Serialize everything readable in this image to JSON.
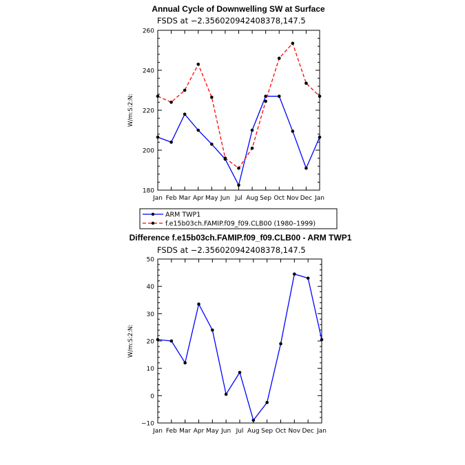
{
  "chart_data": [
    {
      "type": "line",
      "title": "Annual Cycle of Downwelling SW at Surface",
      "subtitle": "FSDS at −2.356020942408378,147.5",
      "ylabel": "W/m:S:2:N:",
      "xlabel": "",
      "ylim": [
        180,
        260
      ],
      "yticks": [
        "180",
        "200",
        "220",
        "240",
        "260"
      ],
      "categories": [
        "Jan",
        "Feb",
        "Mar",
        "Apr",
        "May",
        "Jun",
        "Jul",
        "Aug",
        "Sep",
        "Oct",
        "Nov",
        "Dec",
        "Jan"
      ],
      "grid": false,
      "series": [
        {
          "name": "ARM TWP1",
          "color": "#0000ff",
          "dash": "solid",
          "values": [
            206.5,
            204,
            218,
            210,
            203,
            195.5,
            182.5,
            210,
            227,
            227,
            209.5,
            191,
            206.5
          ]
        },
        {
          "name": "f.e15b03ch.FAMIP.f09_f09.CLB00 (1980–1999)",
          "color": "#ff0000",
          "dash": "dashed",
          "values": [
            227,
            224,
            230,
            243,
            226.5,
            196,
            191,
            201,
            224.5,
            246,
            253.5,
            233.5,
            227
          ]
        }
      ],
      "legend": "below"
    },
    {
      "type": "line",
      "title": "Difference f.e15b03ch.FAMIP.f09_f09.CLB00 - ARM TWP1",
      "subtitle": "FSDS at −2.356020942408378,147.5",
      "ylabel": "W/m:S:2:N:",
      "xlabel": "",
      "ylim": [
        -10,
        50
      ],
      "yticks": [
        "−10",
        "0",
        "10",
        "20",
        "30",
        "40",
        "50"
      ],
      "categories": [
        "Jan",
        "Feb",
        "Mar",
        "Apr",
        "May",
        "Jun",
        "Jul",
        "Aug",
        "Sep",
        "Oct",
        "Nov",
        "Dec",
        "Jan"
      ],
      "grid": false,
      "series": [
        {
          "color": "#0000ff",
          "dash": "solid",
          "values": [
            20.5,
            20,
            12,
            33.5,
            24,
            0.5,
            8.5,
            -9,
            -2.5,
            19,
            44.5,
            43,
            20.5
          ]
        }
      ]
    }
  ]
}
